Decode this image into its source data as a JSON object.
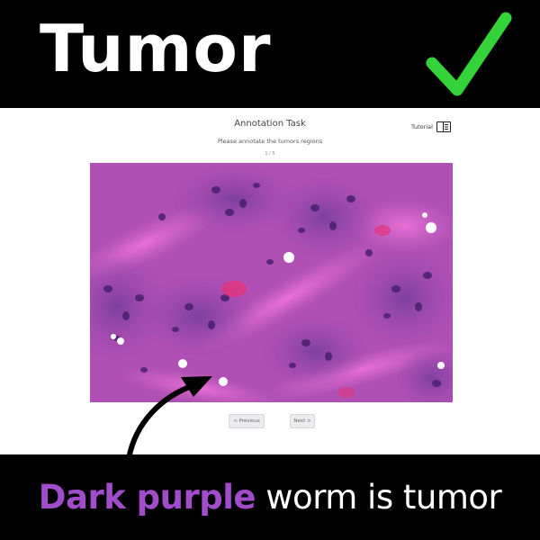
{
  "banner": {
    "title": "Tumor",
    "check_color": "#35d33a",
    "check_icon": "checkmark-icon"
  },
  "app": {
    "title": "Annotation Task",
    "instruction": "Please annotate the tumors regions",
    "counter": "1 / 5",
    "tutorial_label": "Tutorial",
    "tutorial_icon": "book-icon",
    "prev_label": "< Previous",
    "next_label": "Next >"
  },
  "caption": {
    "highlight": "Dark purple",
    "rest": " worm is tumor",
    "highlight_color": "#a04ccb"
  }
}
